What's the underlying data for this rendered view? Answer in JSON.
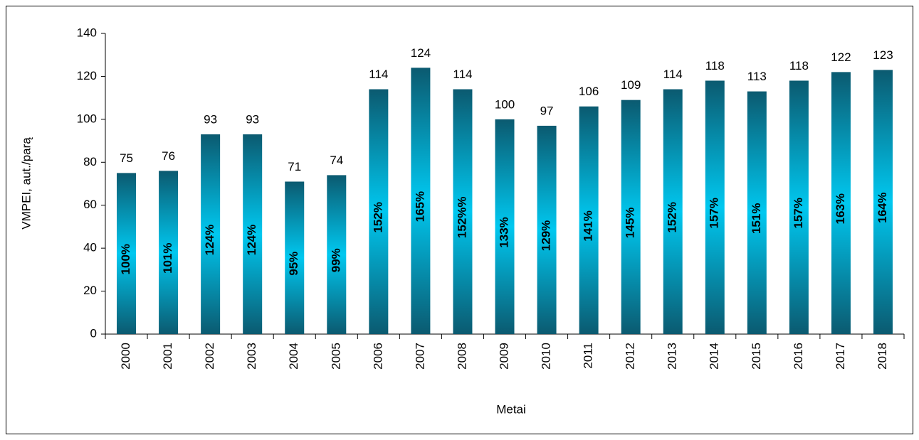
{
  "chart_data": {
    "type": "bar",
    "x_label": "Metai",
    "y_label": "VMPEI, aut./parą",
    "categories": [
      "2000",
      "2001",
      "2002",
      "2003",
      "2004",
      "2005",
      "2006",
      "2007",
      "2008",
      "2009",
      "2010",
      "2011",
      "2012",
      "2013",
      "2014",
      "2015",
      "2016",
      "2017",
      "2018"
    ],
    "values": [
      75,
      76,
      93,
      93,
      71,
      74,
      114,
      124,
      114,
      100,
      97,
      106,
      109,
      114,
      118,
      113,
      118,
      122,
      123
    ],
    "annotations": [
      "100%",
      "101%",
      "124%",
      "124%",
      "95%",
      "99%",
      "152%",
      "165%",
      "152%%",
      "133%",
      "129%",
      "141%",
      "145%",
      "152%",
      "157%",
      "151%",
      "157%",
      "163%",
      "164%"
    ],
    "color": "#00c8f0",
    "edge_color": "#0b5a70",
    "ylim": [
      0,
      140
    ],
    "yticks": [
      0,
      20,
      40,
      60,
      80,
      100,
      120,
      140
    ],
    "grid": false
  }
}
